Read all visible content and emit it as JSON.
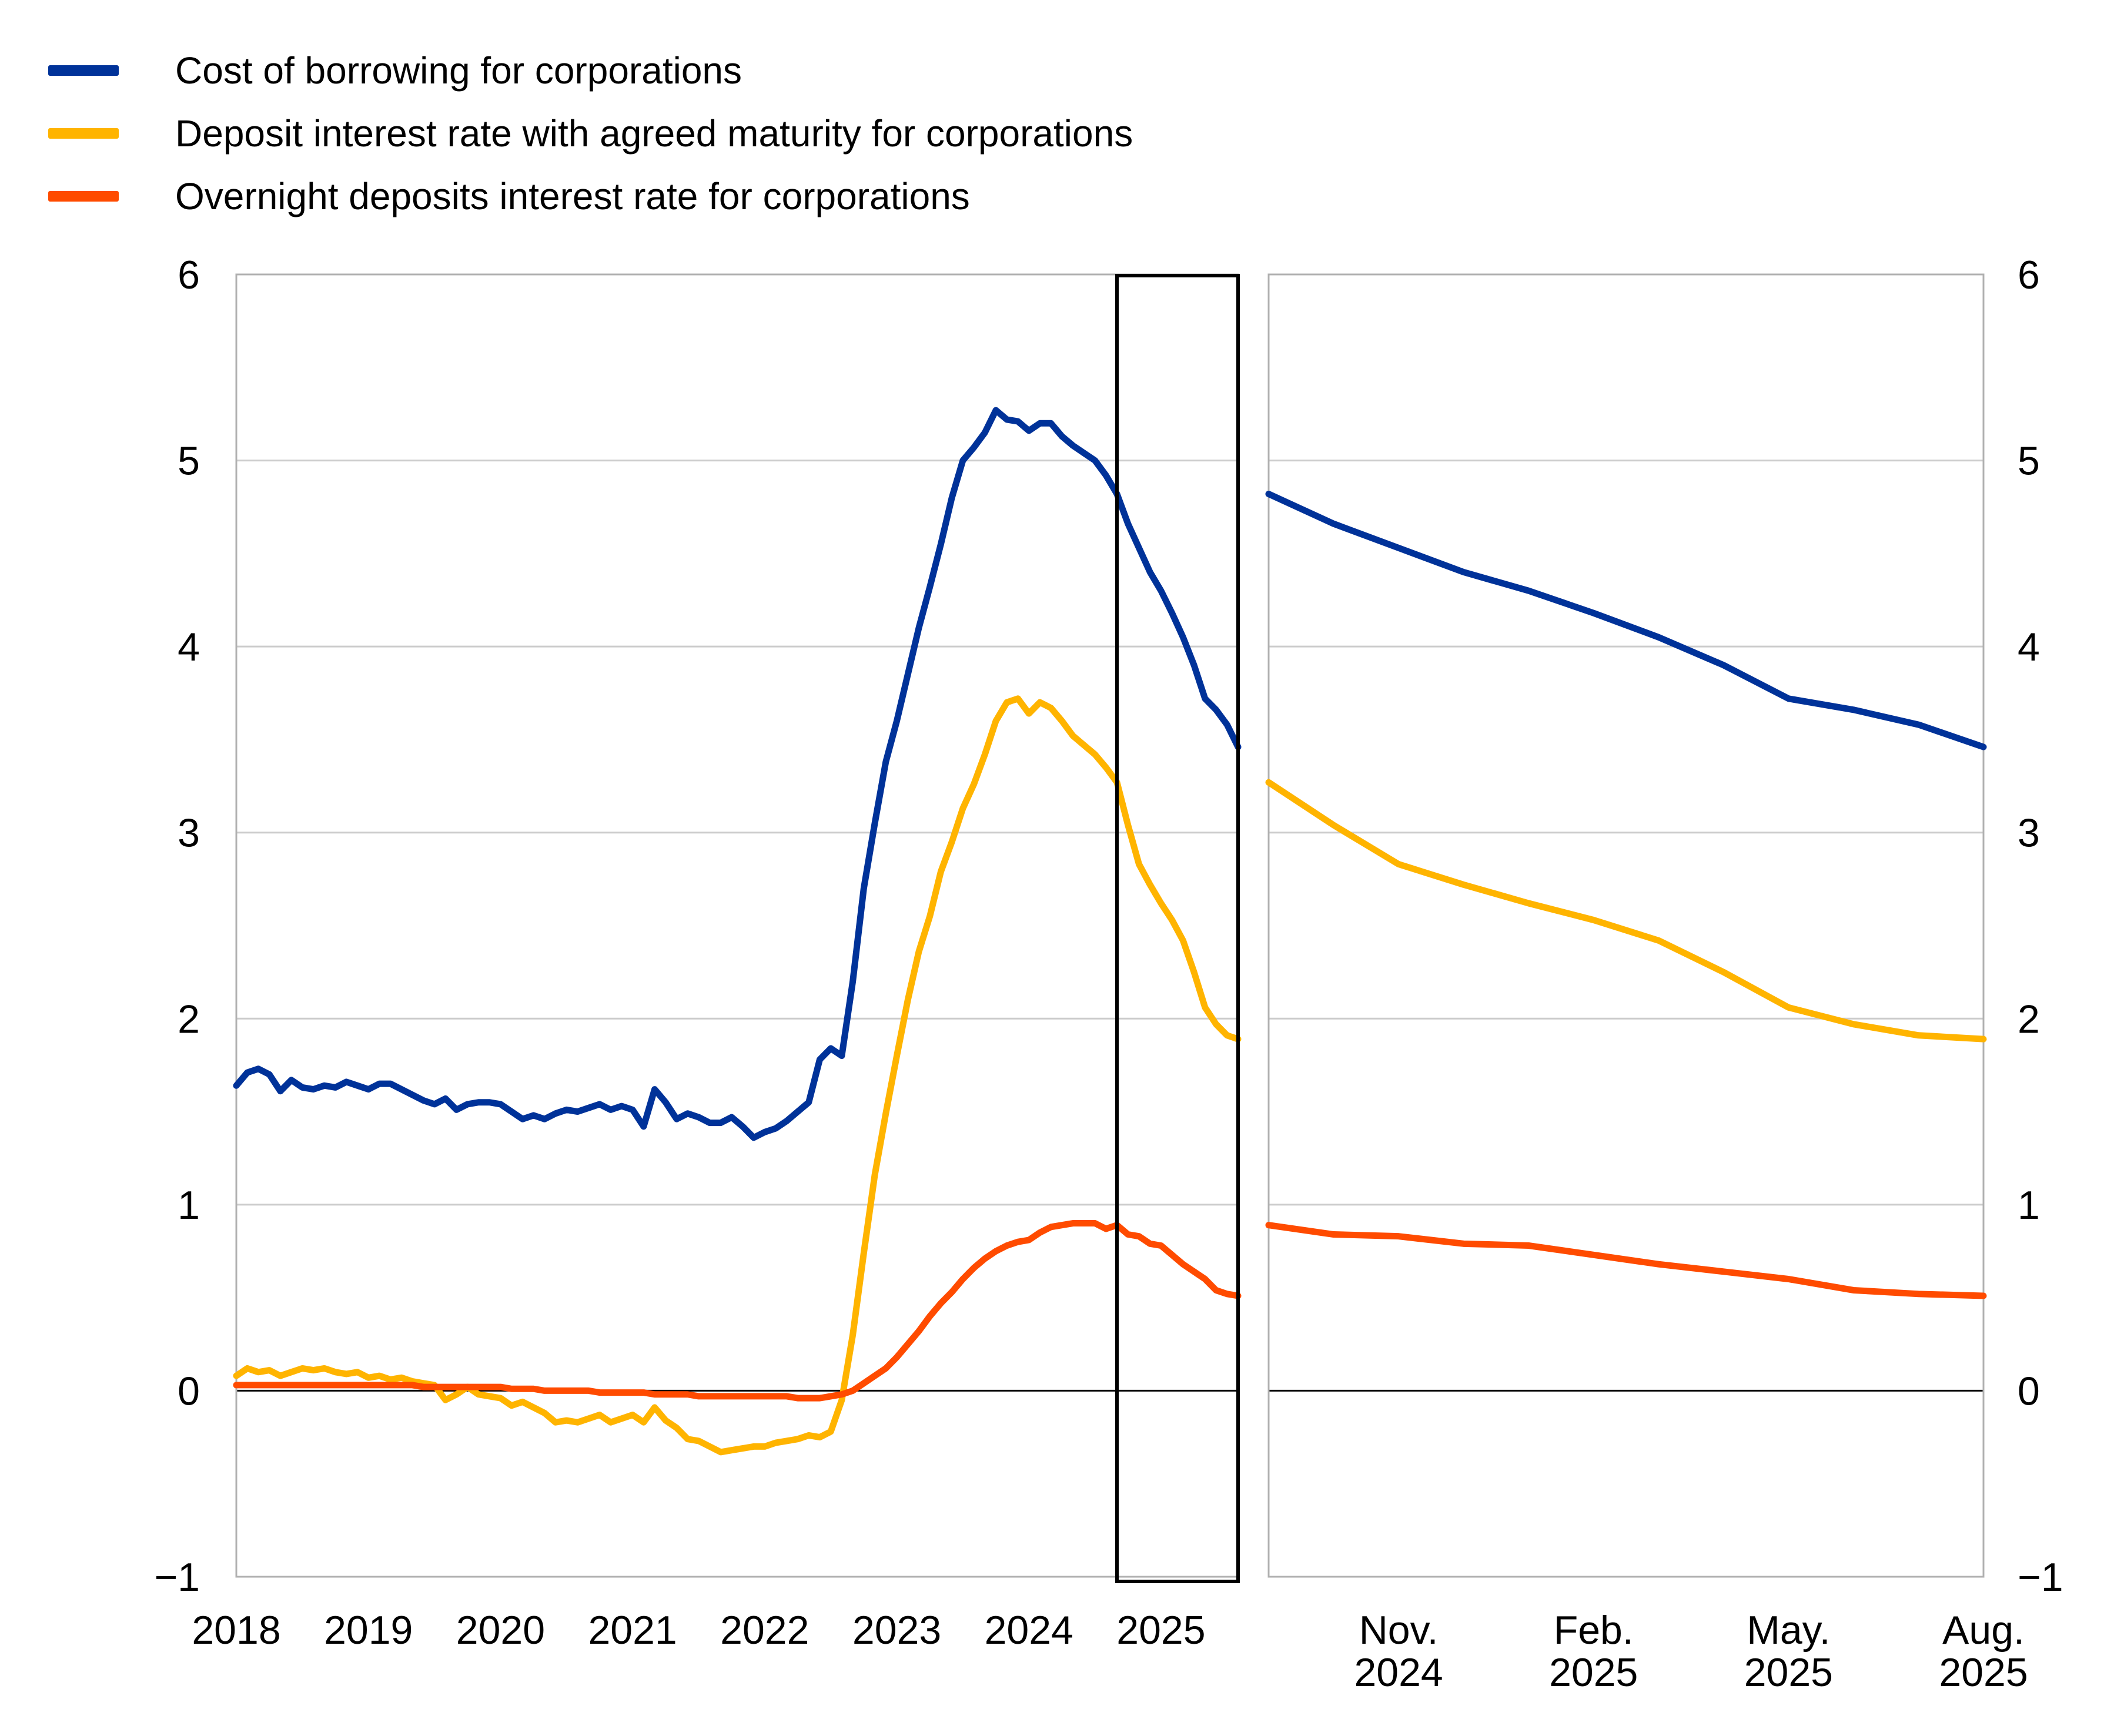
{
  "legend": {
    "items": [
      {
        "label": "Cost of borrowing for corporations",
        "color": "#003299"
      },
      {
        "label": "Deposit interest rate with agreed maturity for corporations",
        "color": "#ffb400"
      },
      {
        "label": "Overnight deposits interest rate for corporations",
        "color": "#ff4b00"
      }
    ]
  },
  "chart_data": {
    "type": "line",
    "y_axis": {
      "min": -1,
      "max": 6,
      "tick_labels": [
        "6",
        "5",
        "4",
        "3",
        "2",
        "1",
        "0",
        "−1"
      ],
      "gridlines": true,
      "zero_line": true,
      "labels_on_left_and_right": true
    },
    "x_monthly": {
      "start_year": 2018,
      "start_month": 1,
      "points": 92,
      "end_label": "Aug 2025"
    },
    "series": [
      {
        "name": "Cost of borrowing for corporations",
        "color": "#003299",
        "values": [
          1.64,
          1.71,
          1.73,
          1.7,
          1.61,
          1.67,
          1.63,
          1.62,
          1.64,
          1.63,
          1.66,
          1.64,
          1.62,
          1.65,
          1.65,
          1.62,
          1.59,
          1.56,
          1.54,
          1.57,
          1.51,
          1.54,
          1.55,
          1.55,
          1.54,
          1.5,
          1.46,
          1.48,
          1.46,
          1.49,
          1.51,
          1.5,
          1.52,
          1.54,
          1.51,
          1.53,
          1.51,
          1.42,
          1.62,
          1.55,
          1.46,
          1.49,
          1.47,
          1.44,
          1.44,
          1.47,
          1.42,
          1.36,
          1.39,
          1.41,
          1.45,
          1.5,
          1.55,
          1.78,
          1.84,
          1.8,
          2.2,
          2.7,
          3.05,
          3.38,
          3.6,
          3.85,
          4.1,
          4.32,
          4.55,
          4.8,
          5.0,
          5.07,
          5.15,
          5.27,
          5.22,
          5.21,
          5.16,
          5.2,
          5.2,
          5.13,
          5.08,
          5.04,
          5.0,
          4.92,
          4.82,
          4.66,
          4.53,
          4.4,
          4.3,
          4.18,
          4.05,
          3.9,
          3.72,
          3.66,
          3.58,
          3.46
        ]
      },
      {
        "name": "Deposit interest rate with agreed maturity for corporations",
        "color": "#ffb400",
        "values": [
          0.08,
          0.12,
          0.1,
          0.11,
          0.08,
          0.1,
          0.12,
          0.11,
          0.12,
          0.1,
          0.09,
          0.1,
          0.07,
          0.08,
          0.06,
          0.07,
          0.05,
          0.04,
          0.03,
          -0.05,
          -0.02,
          0.02,
          -0.02,
          -0.03,
          -0.04,
          -0.08,
          -0.06,
          -0.09,
          -0.12,
          -0.17,
          -0.16,
          -0.17,
          -0.15,
          -0.13,
          -0.17,
          -0.15,
          -0.13,
          -0.17,
          -0.09,
          -0.16,
          -0.2,
          -0.26,
          -0.27,
          -0.3,
          -0.33,
          -0.32,
          -0.31,
          -0.3,
          -0.3,
          -0.28,
          -0.27,
          -0.26,
          -0.24,
          -0.25,
          -0.22,
          -0.05,
          0.3,
          0.74,
          1.16,
          1.49,
          1.8,
          2.1,
          2.36,
          2.55,
          2.79,
          2.95,
          3.13,
          3.26,
          3.42,
          3.6,
          3.7,
          3.72,
          3.64,
          3.7,
          3.67,
          3.6,
          3.52,
          3.47,
          3.42,
          3.35,
          3.27,
          3.04,
          2.83,
          2.72,
          2.62,
          2.53,
          2.42,
          2.25,
          2.06,
          1.97,
          1.91,
          1.89
        ]
      },
      {
        "name": "Overnight deposits interest rate for corporations",
        "color": "#ff4b00",
        "values": [
          0.03,
          0.03,
          0.03,
          0.03,
          0.03,
          0.03,
          0.03,
          0.03,
          0.03,
          0.03,
          0.03,
          0.03,
          0.03,
          0.03,
          0.03,
          0.03,
          0.03,
          0.02,
          0.02,
          0.02,
          0.02,
          0.02,
          0.02,
          0.02,
          0.02,
          0.01,
          0.01,
          0.01,
          0.0,
          0.0,
          0.0,
          0.0,
          0.0,
          -0.01,
          -0.01,
          -0.01,
          -0.01,
          -0.01,
          -0.02,
          -0.02,
          -0.02,
          -0.02,
          -0.03,
          -0.03,
          -0.03,
          -0.03,
          -0.03,
          -0.03,
          -0.03,
          -0.03,
          -0.03,
          -0.04,
          -0.04,
          -0.04,
          -0.03,
          -0.02,
          0.0,
          0.04,
          0.08,
          0.12,
          0.18,
          0.25,
          0.32,
          0.4,
          0.47,
          0.53,
          0.6,
          0.66,
          0.71,
          0.75,
          0.78,
          0.8,
          0.81,
          0.85,
          0.88,
          0.89,
          0.9,
          0.9,
          0.9,
          0.87,
          0.89,
          0.84,
          0.83,
          0.79,
          0.78,
          0.73,
          0.68,
          0.64,
          0.6,
          0.54,
          0.52,
          0.51
        ]
      }
    ],
    "left_panel": {
      "x_tick_labels": [
        "2018",
        "2019",
        "2020",
        "2021",
        "2022",
        "2023",
        "2024",
        "2025"
      ],
      "x_tick_month_indices": [
        0,
        12,
        24,
        36,
        48,
        60,
        72,
        84
      ]
    },
    "right_panel": {
      "start_month_index": 80,
      "points": 12,
      "x_tick_labels": [
        [
          "Nov.",
          "2024"
        ],
        [
          "Feb.",
          "2025"
        ],
        [
          "May.",
          "2025"
        ],
        [
          "Aug.",
          "2025"
        ]
      ],
      "x_tick_point_indices": [
        2,
        5,
        8,
        11
      ]
    },
    "highlight_box": {
      "from_month_index": 80,
      "to_month_index": 91
    },
    "colors": {
      "gridline": "#cccccc",
      "panel_border": "#b0b0b0",
      "zero_line": "#000000",
      "highlight_border": "#000000"
    }
  }
}
